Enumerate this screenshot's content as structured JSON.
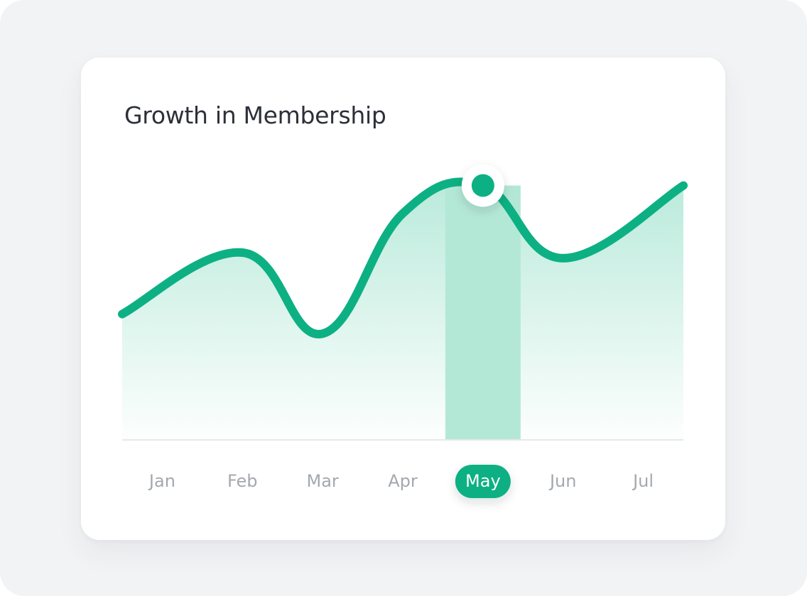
{
  "card": {
    "title": "Growth in Membership"
  },
  "colors": {
    "accent": "#0db083",
    "accent_fill": "#b6e9d9",
    "highlight_band": "#b4e8d6",
    "baseline": "#e6e8eb",
    "tick_text": "#a4a8ae",
    "active_text": "#ffffff",
    "page_background": "#f2f3f5",
    "card_background": "#ffffff"
  },
  "chart_data": {
    "type": "area",
    "title": "Growth in Membership",
    "xlabel": "",
    "ylabel": "",
    "categories": [
      "Jan",
      "Feb",
      "Mar",
      "Apr",
      "May",
      "Jun",
      "Jul"
    ],
    "series": [
      {
        "values": [
          45,
          67,
          38,
          81,
          91,
          65,
          91
        ]
      }
    ],
    "ylim": [
      0,
      100
    ],
    "grid": false,
    "legend": "none",
    "highlighted_category": "May"
  }
}
